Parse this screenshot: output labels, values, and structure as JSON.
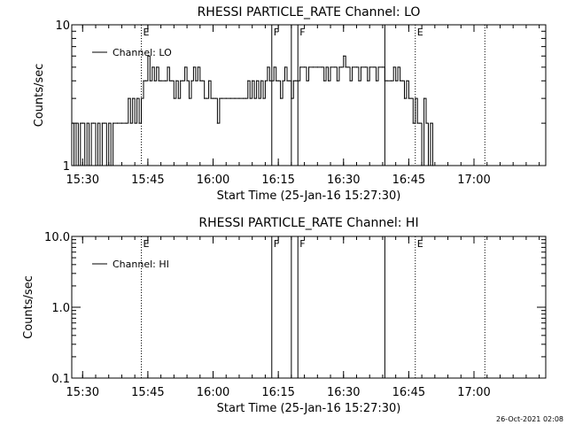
{
  "chart_data": [
    {
      "type": "line",
      "title": "RHESSI PARTICLE_RATE Channel: LO",
      "xlabel": "Start Time (25-Jan-16 15:27:30)",
      "ylabel": "Counts/sec",
      "y_scale": "log",
      "ylim": [
        1,
        10
      ],
      "y_ticks": [
        {
          "value": 1,
          "label": "1"
        },
        {
          "value": 10,
          "label": "10"
        }
      ],
      "xlim": [
        "15:27:30",
        "17:16:30"
      ],
      "x_ticks": [
        "15:30",
        "15:45",
        "16:00",
        "16:15",
        "16:30",
        "16:45",
        "17:00"
      ],
      "legend": {
        "text": "Channel: LO",
        "placement": "top-left"
      },
      "grid": false,
      "markers": [
        {
          "time": "15:43:30",
          "label": "E",
          "style": "dotted"
        },
        {
          "time": "16:13:30",
          "label": "F",
          "style": "solid"
        },
        {
          "time": "16:18:00",
          "label": "",
          "style": "solid"
        },
        {
          "time": "16:19:30",
          "label": "F",
          "style": "solid"
        },
        {
          "time": "16:39:30",
          "label": "",
          "style": "solid"
        },
        {
          "time": "16:46:30",
          "label": "E",
          "style": "dotted"
        },
        {
          "time": "17:02:30",
          "label": "",
          "style": "dotted"
        }
      ],
      "series": [
        {
          "values": [
            [
              "15:27:30",
              2
            ],
            [
              "15:28:00",
              1
            ],
            [
              "15:28:30",
              2
            ],
            [
              "15:29:00",
              1
            ],
            [
              "15:29:30",
              2
            ],
            [
              "15:30:00",
              2
            ],
            [
              "15:30:30",
              1
            ],
            [
              "15:31:00",
              2
            ],
            [
              "15:31:30",
              1
            ],
            [
              "15:32:00",
              2
            ],
            [
              "15:32:30",
              2
            ],
            [
              "15:33:00",
              1
            ],
            [
              "15:33:30",
              2
            ],
            [
              "15:34:00",
              1
            ],
            [
              "15:34:30",
              2
            ],
            [
              "15:35:00",
              2
            ],
            [
              "15:35:30",
              1
            ],
            [
              "15:36:00",
              2
            ],
            [
              "15:36:30",
              1
            ],
            [
              "15:37:00",
              2
            ],
            [
              "15:38:00",
              2
            ],
            [
              "15:39:00",
              2
            ],
            [
              "15:40:00",
              2
            ],
            [
              "15:40:30",
              3
            ],
            [
              "15:41:00",
              2
            ],
            [
              "15:41:30",
              3
            ],
            [
              "15:42:00",
              2
            ],
            [
              "15:42:30",
              3
            ],
            [
              "15:43:00",
              2
            ],
            [
              "15:43:30",
              3
            ],
            [
              "15:44:00",
              4
            ],
            [
              "15:44:30",
              4
            ],
            [
              "15:45:00",
              6
            ],
            [
              "15:45:30",
              4
            ],
            [
              "15:46:00",
              5
            ],
            [
              "15:46:30",
              4
            ],
            [
              "15:47:00",
              5
            ],
            [
              "15:47:30",
              4
            ],
            [
              "15:48:00",
              4
            ],
            [
              "15:49:00",
              4
            ],
            [
              "15:49:30",
              5
            ],
            [
              "15:50:00",
              4
            ],
            [
              "15:50:30",
              4
            ],
            [
              "15:51:00",
              3
            ],
            [
              "15:51:30",
              4
            ],
            [
              "15:52:00",
              3
            ],
            [
              "15:52:30",
              4
            ],
            [
              "15:53:00",
              4
            ],
            [
              "15:53:30",
              5
            ],
            [
              "15:54:00",
              4
            ],
            [
              "15:54:30",
              3
            ],
            [
              "15:55:00",
              4
            ],
            [
              "15:55:30",
              5
            ],
            [
              "15:56:00",
              4
            ],
            [
              "15:56:30",
              5
            ],
            [
              "15:57:00",
              4
            ],
            [
              "15:57:30",
              4
            ],
            [
              "15:58:00",
              3
            ],
            [
              "15:58:30",
              3
            ],
            [
              "15:59:00",
              4
            ],
            [
              "15:59:30",
              3
            ],
            [
              "16:00:00",
              3
            ],
            [
              "16:00:30",
              3
            ],
            [
              "16:01:00",
              2
            ],
            [
              "16:01:30",
              3
            ],
            [
              "16:02:00",
              3
            ],
            [
              "16:03:00",
              3
            ],
            [
              "16:04:00",
              3
            ],
            [
              "16:05:00",
              3
            ],
            [
              "16:06:00",
              3
            ],
            [
              "16:07:00",
              3
            ],
            [
              "16:07:30",
              3
            ],
            [
              "16:08:00",
              4
            ],
            [
              "16:08:30",
              3
            ],
            [
              "16:09:00",
              4
            ],
            [
              "16:09:30",
              3
            ],
            [
              "16:10:00",
              4
            ],
            [
              "16:10:30",
              3
            ],
            [
              "16:11:00",
              4
            ],
            [
              "16:11:30",
              3
            ],
            [
              "16:12:00",
              4
            ],
            [
              "16:12:30",
              5
            ],
            [
              "16:13:00",
              4
            ],
            [
              "16:13:30",
              4
            ],
            [
              "16:14:00",
              5
            ],
            [
              "16:14:30",
              4
            ],
            [
              "16:15:00",
              4
            ],
            [
              "16:15:30",
              3
            ],
            [
              "16:16:00",
              4
            ],
            [
              "16:16:30",
              5
            ],
            [
              "16:17:00",
              4
            ],
            [
              "16:17:30",
              4
            ],
            [
              "16:18:00",
              3
            ],
            [
              "16:18:30",
              4
            ],
            [
              "16:19:00",
              4
            ],
            [
              "16:19:30",
              4
            ],
            [
              "16:20:00",
              5
            ],
            [
              "16:21:00",
              5
            ],
            [
              "16:21:30",
              4
            ],
            [
              "16:22:00",
              5
            ],
            [
              "16:23:00",
              5
            ],
            [
              "16:24:00",
              5
            ],
            [
              "16:25:00",
              5
            ],
            [
              "16:25:30",
              4
            ],
            [
              "16:26:00",
              5
            ],
            [
              "16:26:30",
              4
            ],
            [
              "16:27:00",
              5
            ],
            [
              "16:28:00",
              5
            ],
            [
              "16:28:30",
              4
            ],
            [
              "16:29:00",
              5
            ],
            [
              "16:29:30",
              5
            ],
            [
              "16:30:00",
              6
            ],
            [
              "16:30:30",
              5
            ],
            [
              "16:31:00",
              5
            ],
            [
              "16:31:30",
              4
            ],
            [
              "16:32:00",
              5
            ],
            [
              "16:33:00",
              5
            ],
            [
              "16:33:30",
              4
            ],
            [
              "16:34:00",
              5
            ],
            [
              "16:35:00",
              5
            ],
            [
              "16:35:30",
              4
            ],
            [
              "16:36:00",
              5
            ],
            [
              "16:37:00",
              5
            ],
            [
              "16:37:30",
              4
            ],
            [
              "16:38:00",
              5
            ],
            [
              "16:39:00",
              5
            ],
            [
              "16:39:30",
              4
            ],
            [
              "16:40:00",
              4
            ],
            [
              "16:41:00",
              4
            ],
            [
              "16:41:30",
              5
            ],
            [
              "16:42:00",
              4
            ],
            [
              "16:42:30",
              5
            ],
            [
              "16:43:00",
              4
            ],
            [
              "16:43:30",
              4
            ],
            [
              "16:44:00",
              3
            ],
            [
              "16:44:30",
              4
            ],
            [
              "16:45:00",
              3
            ],
            [
              "16:45:30",
              3
            ],
            [
              "16:46:00",
              2
            ],
            [
              "16:46:30",
              3
            ],
            [
              "16:47:00",
              2
            ],
            [
              "16:47:30",
              2
            ],
            [
              "16:48:00",
              1
            ],
            [
              "16:48:30",
              3
            ],
            [
              "16:49:00",
              2
            ],
            [
              "16:49:30",
              1
            ],
            [
              "16:50:00",
              2
            ],
            [
              "16:50:30",
              1
            ]
          ]
        }
      ]
    },
    {
      "type": "line",
      "title": "RHESSI PARTICLE_RATE Channel: HI",
      "xlabel": "Start Time (25-Jan-16 15:27:30)",
      "ylabel": "Counts/sec",
      "y_scale": "log",
      "ylim": [
        0.1,
        10
      ],
      "y_ticks": [
        {
          "value": 0.1,
          "label": "0.1"
        },
        {
          "value": 1,
          "label": "1.0"
        },
        {
          "value": 10,
          "label": "10.0"
        }
      ],
      "xlim": [
        "15:27:30",
        "17:16:30"
      ],
      "x_ticks": [
        "15:30",
        "15:45",
        "16:00",
        "16:15",
        "16:30",
        "16:45",
        "17:00"
      ],
      "legend": {
        "text": "Channel: HI",
        "placement": "top-left"
      },
      "grid": false,
      "markers": [
        {
          "time": "15:43:30",
          "label": "E",
          "style": "dotted"
        },
        {
          "time": "16:13:30",
          "label": "F",
          "style": "solid"
        },
        {
          "time": "16:18:00",
          "label": "",
          "style": "solid"
        },
        {
          "time": "16:19:30",
          "label": "F",
          "style": "solid"
        },
        {
          "time": "16:39:30",
          "label": "",
          "style": "solid"
        },
        {
          "time": "16:46:30",
          "label": "E",
          "style": "dotted"
        },
        {
          "time": "17:02:30",
          "label": "",
          "style": "dotted"
        }
      ],
      "series": [
        {
          "values": []
        }
      ]
    }
  ],
  "footer": {
    "timestamp": "26-Oct-2021 02:08"
  }
}
